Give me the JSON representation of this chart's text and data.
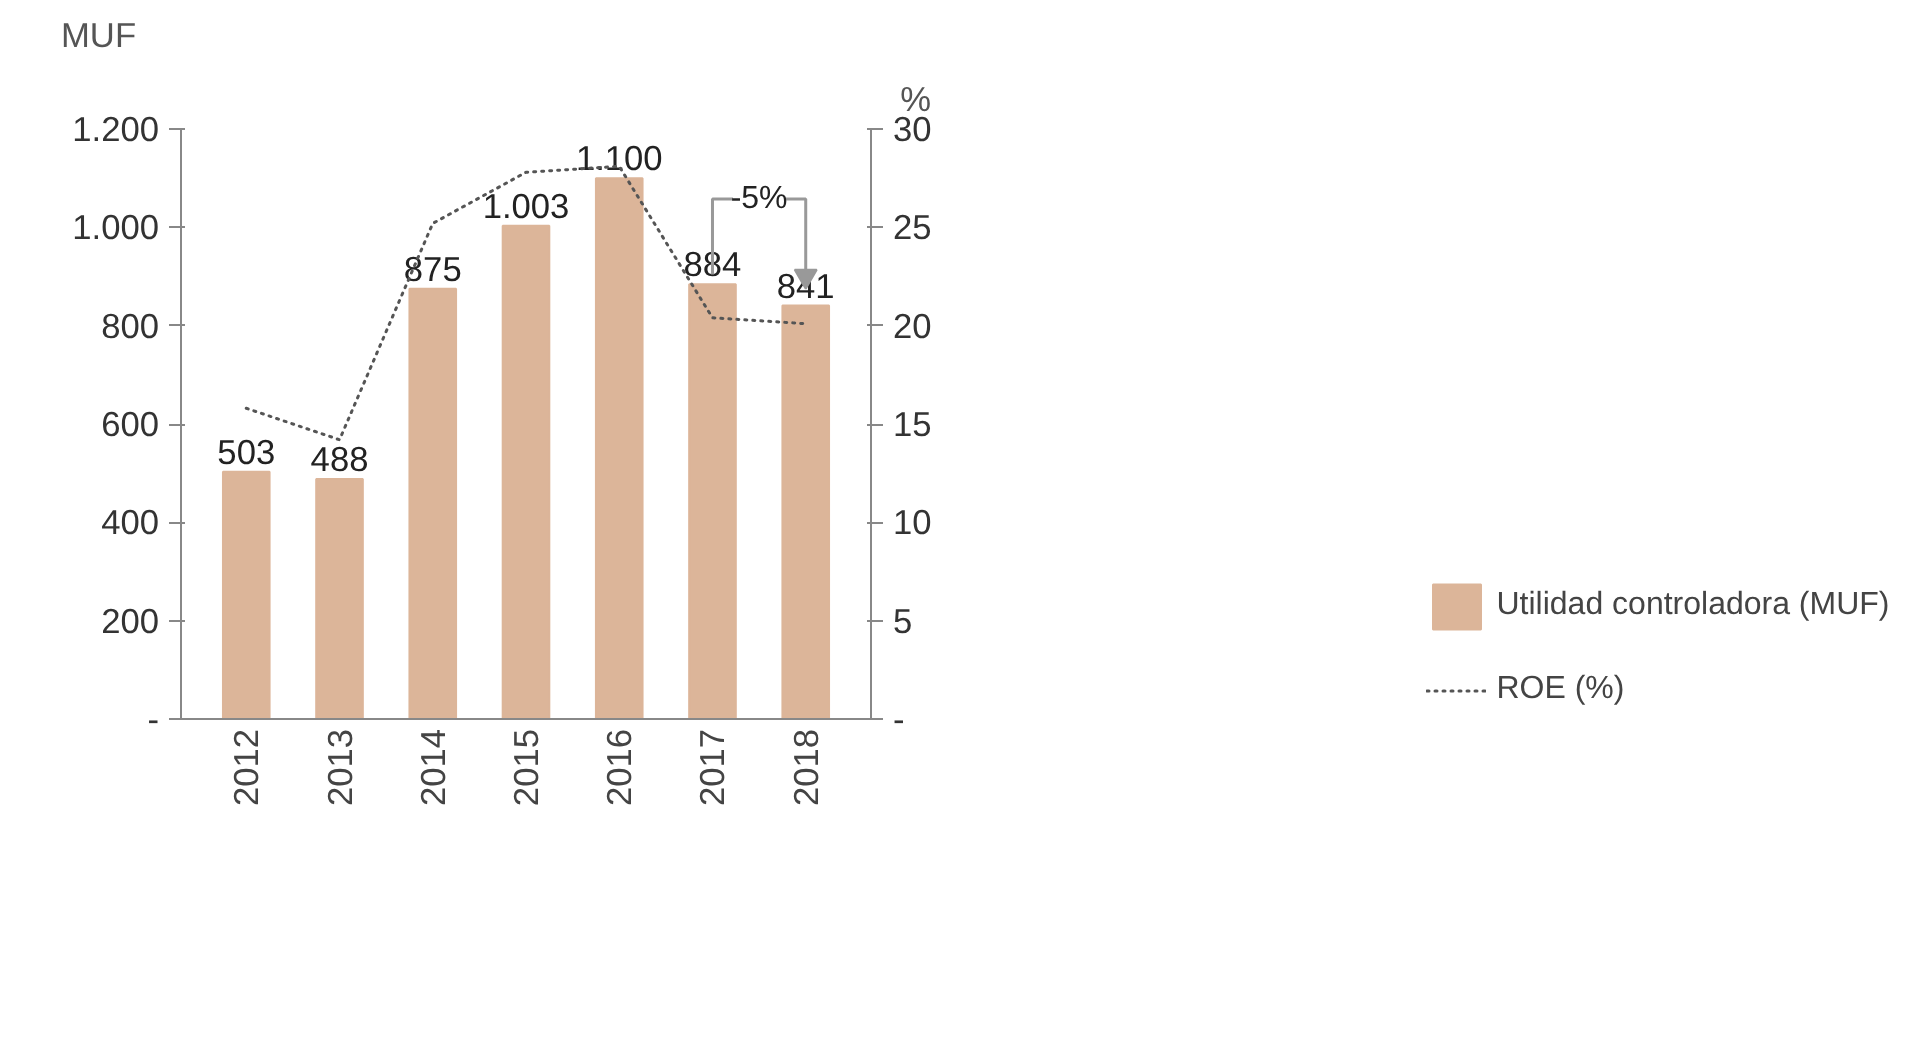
{
  "chart_data": {
    "type": "bar",
    "ylabel": "MUF",
    "y2label": "%",
    "categories": [
      "2012",
      "2013",
      "2014",
      "2015",
      "2016",
      "2017",
      "2018"
    ],
    "ylim": [
      0,
      1200
    ],
    "yticks": [
      {
        "value": 0,
        "label": "-"
      },
      200,
      400,
      600,
      800,
      {
        "value": 1000,
        "label": "1.000"
      },
      {
        "value": 1200,
        "label": "1.200"
      }
    ],
    "y2lim": [
      0,
      30
    ],
    "y2ticks": [
      {
        "value": 0,
        "label": "-"
      },
      5,
      10,
      15,
      20,
      25,
      30
    ],
    "series": [
      {
        "name": "Utilidad controladora (MUF)",
        "color": "#dcb599",
        "values": [
          503,
          488,
          875,
          1003,
          1100,
          884,
          841
        ],
        "value_labels": [
          "503",
          "488",
          "875",
          "1.003",
          "1.100",
          "884",
          "841"
        ]
      },
      {
        "name": "ROE (%)",
        "type": "line",
        "axis": "y2",
        "color": "#555555",
        "line_style": "dotted",
        "values": [
          15.8,
          14.2,
          25.2,
          27.8,
          28.1,
          20.4,
          20.1
        ]
      }
    ],
    "annotations": [
      "-5%"
    ],
    "legend": "bottom right",
    "grid": false
  }
}
